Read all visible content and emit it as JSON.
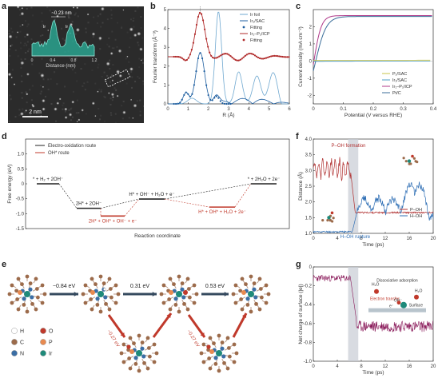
{
  "labels": {
    "a": "a",
    "b": "b",
    "c": "c",
    "d": "d",
    "e": "e",
    "f": "f",
    "g": "g"
  },
  "panel_a": {
    "scale_text": "~0.23 nm",
    "ir_marker": "Ir",
    "x_axis_label": "Distance (nm)",
    "x_ticks": [
      "0",
      "0.4",
      "0.8",
      "1.2"
    ],
    "scale_bar": "2 nm",
    "colors": {
      "inset": "#2aa38f"
    }
  },
  "chart_b": {
    "type": "line",
    "xlabel": "R (Å)",
    "ylabel": "Fourier transform (Å⁻³)",
    "xlim": [
      0,
      6
    ],
    "ylim": [
      0,
      5
    ],
    "x_ticks": [
      "0",
      "1",
      "2",
      "3",
      "4",
      "5",
      "6"
    ],
    "y_ticks": [
      "0",
      "1",
      "2",
      "3",
      "4",
      "5"
    ],
    "legend": [
      "Ir foil",
      "Ir₁/SAC",
      "Fitting",
      "Ir₁–P₁/ICP",
      "Fitting"
    ],
    "colors": {
      "foil": "#6fa8d0",
      "sac": "#1f5fa0",
      "icp": "#b02a2a"
    }
  },
  "chart_c": {
    "type": "line",
    "xlabel": "Potential (V versus RHE)",
    "ylabel": "Current density (mA cm⁻²)",
    "xlim": [
      0,
      0.4
    ],
    "ylim": [
      -2.5,
      3
    ],
    "x_ticks": [
      "0",
      "0.1",
      "0.2",
      "0.3",
      "0.4"
    ],
    "y_ticks": [
      "-2",
      "-1",
      "0",
      "1",
      "2"
    ],
    "legend": [
      "P₁/SAC",
      "Ir₁/SAC",
      "Ir₁–P₁/ICP",
      "Pt/C"
    ],
    "colors": {
      "p1sac": "#c8c44a",
      "ir1sac": "#4f9fc4",
      "icp": "#b03a8a",
      "ptc": "#3b6e9a"
    }
  },
  "chart_d": {
    "type": "line",
    "xlabel": "Reaction coordinate",
    "ylabel": "Free energy (eV)",
    "ylim": [
      -1.5,
      1.5
    ],
    "y_ticks": [
      "1.0",
      "0.5",
      "0",
      "-0.5",
      "-1.0",
      "-1.5"
    ],
    "legend": [
      "Electro-oxidation route",
      "OH* route"
    ],
    "states": [
      "* + H₂ + 2OH⁻",
      "2H* + 2OH⁻",
      "H* + OH⁻ + H₂O + e⁻",
      "* + 2H₂O + 2e⁻",
      "2H* + OH* + OH⁻ + e⁻",
      "H* + OH* + H₂O + 2e⁻"
    ],
    "colors": {
      "black": "#222222",
      "red": "#c0392b"
    }
  },
  "panel_e": {
    "energies_top": [
      "−0.84 eV",
      "0.31 eV",
      "0.53 eV"
    ],
    "energies_bottom": [
      "−0.27 eV",
      "−0.27 eV"
    ],
    "legend": [
      "H",
      "O",
      "C",
      "P",
      "N",
      "Ir"
    ],
    "colors": {
      "H": "#ffffff",
      "O": "#c0392b",
      "C": "#9c6b4b",
      "P": "#e88a50",
      "N": "#3b6ea5",
      "Ir": "#1e8a7a"
    }
  },
  "chart_f": {
    "type": "line",
    "xlabel": "Time (ps)",
    "ylabel": "Distance (Å)",
    "xlim": [
      0,
      20
    ],
    "ylim": [
      1.0,
      4.0
    ],
    "x_ticks": [
      "0",
      "4",
      "8",
      "12",
      "16",
      "20"
    ],
    "y_ticks": [
      "1.0",
      "1.5",
      "2.0",
      "2.5",
      "3.0",
      "3.5",
      "4.0"
    ],
    "annotations": [
      "P–OH formation",
      "H–OH rupture"
    ],
    "legend": [
      "P–OH",
      "H–OH"
    ],
    "colors": {
      "poh": "#b03030",
      "hoh": "#2f6fb5"
    }
  },
  "chart_g": {
    "type": "line",
    "xlabel": "Time (ps)",
    "ylabel": "Net charge of surface (|e|)",
    "xlim": [
      0,
      20
    ],
    "ylim": [
      -1.0,
      0.0
    ],
    "x_ticks": [
      "0",
      "4",
      "8",
      "12",
      "16",
      "20"
    ],
    "y_ticks": [
      "0",
      "-0.2",
      "-0.4",
      "-0.6",
      "-0.8",
      "-1.0"
    ],
    "annotations": [
      "Dissociative adsorption",
      "H₂O",
      "H₂O",
      "Electron transfer",
      "OH⁻",
      "e⁻",
      "Surface"
    ],
    "colors": {
      "line": "#8a1a5a"
    }
  }
}
